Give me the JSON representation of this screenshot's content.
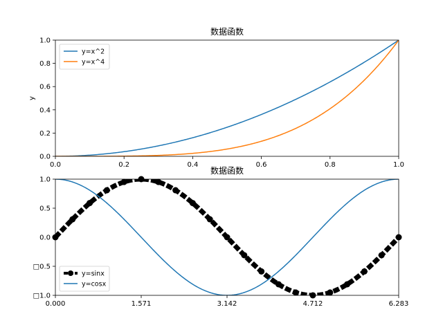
{
  "chart_data": [
    {
      "type": "line",
      "title": "数据函数",
      "xlabel": "",
      "ylabel": "y",
      "xlim": [
        0,
        1
      ],
      "ylim": [
        0,
        1
      ],
      "xticks": [
        "0.0",
        "0.2",
        "0.4",
        "0.6",
        "0.8",
        "1.0"
      ],
      "yticks": [
        "0.0",
        "0.2",
        "0.4",
        "0.6",
        "0.8",
        "1.0"
      ],
      "legend_position": "upper-left",
      "grid": false,
      "x": [
        0,
        0.05,
        0.1,
        0.15,
        0.2,
        0.25,
        0.3,
        0.35,
        0.4,
        0.45,
        0.5,
        0.55,
        0.6,
        0.65,
        0.7,
        0.75,
        0.8,
        0.85,
        0.9,
        0.95,
        1.0
      ],
      "series": [
        {
          "name": "y=x^2",
          "color": "#1f77b4",
          "values": [
            0,
            0.0025,
            0.01,
            0.0225,
            0.04,
            0.0625,
            0.09,
            0.1225,
            0.16,
            0.2025,
            0.25,
            0.3025,
            0.36,
            0.4225,
            0.49,
            0.5625,
            0.64,
            0.7225,
            0.81,
            0.9025,
            1.0
          ]
        },
        {
          "name": "y=x^4",
          "color": "#ff7f0e",
          "values": [
            0,
            6.3e-06,
            0.0001,
            0.0005,
            0.0016,
            0.0039,
            0.0081,
            0.015,
            0.0256,
            0.041,
            0.0625,
            0.0915,
            0.1296,
            0.1785,
            0.2401,
            0.3164,
            0.4096,
            0.522,
            0.6561,
            0.8145,
            1.0
          ]
        }
      ]
    },
    {
      "type": "line",
      "title": "数据函数",
      "xlabel": "",
      "ylabel": "",
      "xlim": [
        0,
        6.283
      ],
      "ylim": [
        -1,
        1
      ],
      "xticks": [
        "0.000",
        "1.571",
        "3.142",
        "4.712",
        "6.283"
      ],
      "yticks": [
        "□1.0",
        "□0.5",
        "0.0",
        "0.5",
        "1.0"
      ],
      "legend_position": "lower-left",
      "grid": false,
      "x": [
        0,
        0.314,
        0.628,
        0.942,
        1.257,
        1.571,
        1.885,
        2.199,
        2.513,
        2.827,
        3.142,
        3.456,
        3.77,
        4.084,
        4.398,
        4.712,
        5.027,
        5.341,
        5.655,
        5.969,
        6.283
      ],
      "series": [
        {
          "name": "y=sinx",
          "color": "#000000",
          "style": "dashed-thick-markers",
          "values": [
            0,
            0.309,
            0.588,
            0.809,
            0.951,
            1.0,
            0.951,
            0.809,
            0.588,
            0.309,
            0,
            -0.309,
            -0.588,
            -0.809,
            -0.951,
            -1.0,
            -0.951,
            -0.809,
            -0.588,
            -0.309,
            0
          ]
        },
        {
          "name": "y=cosx",
          "color": "#1f77b4",
          "style": "solid",
          "values": [
            1.0,
            0.951,
            0.809,
            0.588,
            0.309,
            0,
            -0.309,
            -0.588,
            -0.809,
            -0.951,
            -1.0,
            -0.951,
            -0.809,
            -0.588,
            -0.309,
            0,
            0.309,
            0.588,
            0.809,
            0.951,
            1.0
          ]
        }
      ]
    }
  ]
}
